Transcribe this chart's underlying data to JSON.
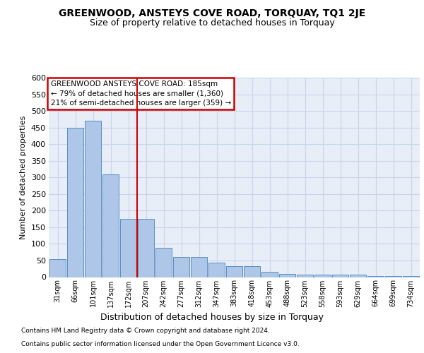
{
  "title": "GREENWOOD, ANSTEYS COVE ROAD, TORQUAY, TQ1 2JE",
  "subtitle": "Size of property relative to detached houses in Torquay",
  "xlabel": "Distribution of detached houses by size in Torquay",
  "ylabel": "Number of detached properties",
  "categories": [
    "31sqm",
    "66sqm",
    "101sqm",
    "137sqm",
    "172sqm",
    "207sqm",
    "242sqm",
    "277sqm",
    "312sqm",
    "347sqm",
    "383sqm",
    "418sqm",
    "453sqm",
    "488sqm",
    "523sqm",
    "558sqm",
    "593sqm",
    "629sqm",
    "664sqm",
    "699sqm",
    "734sqm"
  ],
  "values": [
    55,
    450,
    470,
    310,
    175,
    175,
    88,
    60,
    60,
    43,
    32,
    32,
    15,
    10,
    8,
    8,
    7,
    7,
    3,
    3,
    4
  ],
  "bar_color": "#aec6e8",
  "bar_edgecolor": "#5a8fc2",
  "vline_x": 4.5,
  "vline_color": "#cc0000",
  "annotation_text": "GREENWOOD ANSTEYS COVE ROAD: 185sqm\n← 79% of detached houses are smaller (1,360)\n21% of semi-detached houses are larger (359) →",
  "annotation_box_color": "#ffffff",
  "annotation_box_edgecolor": "#cc0000",
  "ylim": [
    0,
    600
  ],
  "yticks": [
    0,
    50,
    100,
    150,
    200,
    250,
    300,
    350,
    400,
    450,
    500,
    550,
    600
  ],
  "grid_color": "#c8d4e8",
  "bg_color": "#e8eef8",
  "fig_bg_color": "#ffffff",
  "title_fontsize": 10,
  "subtitle_fontsize": 9,
  "annot_fontsize": 7.5,
  "footnote1": "Contains HM Land Registry data © Crown copyright and database right 2024.",
  "footnote2": "Contains public sector information licensed under the Open Government Licence v3.0."
}
